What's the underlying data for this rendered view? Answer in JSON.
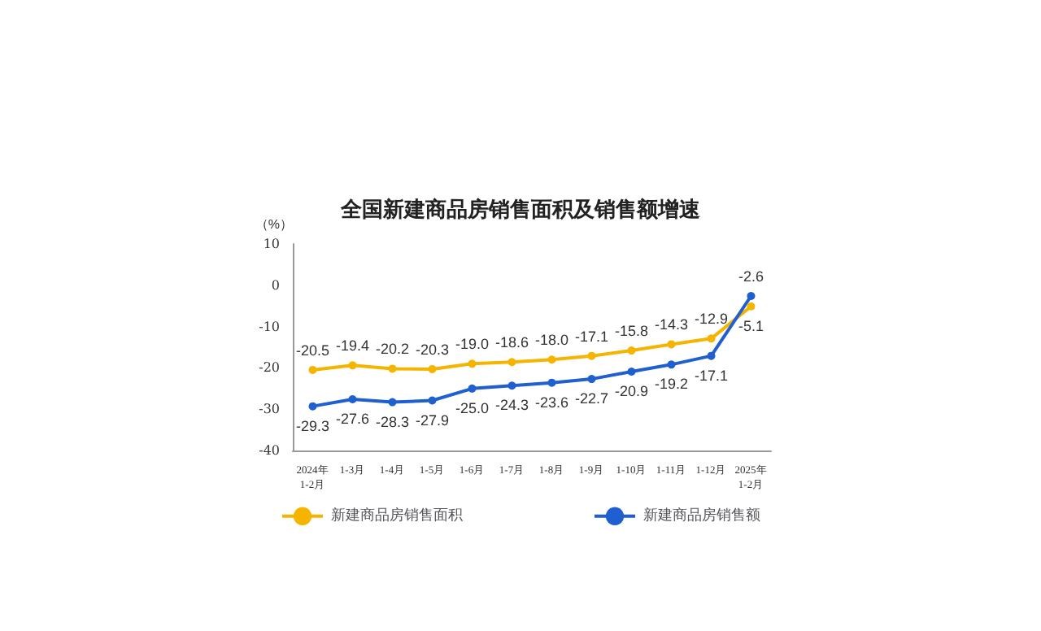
{
  "chart_data": {
    "type": "line",
    "title": "全国新建商品房销售面积及销售额增速",
    "ylabel": "（%）",
    "categories": [
      "2024年\n1-2月",
      "1-3月",
      "1-4月",
      "1-5月",
      "1-6月",
      "1-7月",
      "1-8月",
      "1-9月",
      "1-10月",
      "1-11月",
      "1-12月",
      "2025年\n1-2月"
    ],
    "series": [
      {
        "name": "新建商品房销售面积",
        "color": "#f5b400",
        "values": [
          -20.5,
          -19.4,
          -20.2,
          -20.3,
          -19.0,
          -18.6,
          -18.0,
          -17.1,
          -15.8,
          -14.3,
          -12.9,
          -5.1
        ],
        "value_labels": [
          "-20.5",
          "-19.4",
          "-20.2",
          "-20.3",
          "-19.0",
          "-18.6",
          "-18.0",
          "-17.1",
          "-15.8",
          "-14.3",
          "-12.9",
          "-5.1"
        ]
      },
      {
        "name": "新建商品房销售额",
        "color": "#1f5fd0",
        "values": [
          -29.3,
          -27.6,
          -28.3,
          -27.9,
          -25.0,
          -24.3,
          -23.6,
          -22.7,
          -20.9,
          -19.2,
          -17.1,
          -2.6
        ],
        "value_labels": [
          "-29.3",
          "-27.6",
          "-28.3",
          "-27.9",
          "-25.0",
          "-24.3",
          "-23.6",
          "-22.7",
          "-20.9",
          "-19.2",
          "-17.1",
          "-2.6"
        ]
      }
    ],
    "ylim": [
      -40,
      10
    ],
    "yticks": [
      -40,
      -30,
      -20,
      -10,
      0,
      10
    ],
    "grid": false,
    "legend": "bottom",
    "marker": "circle",
    "line_style": "solid"
  }
}
